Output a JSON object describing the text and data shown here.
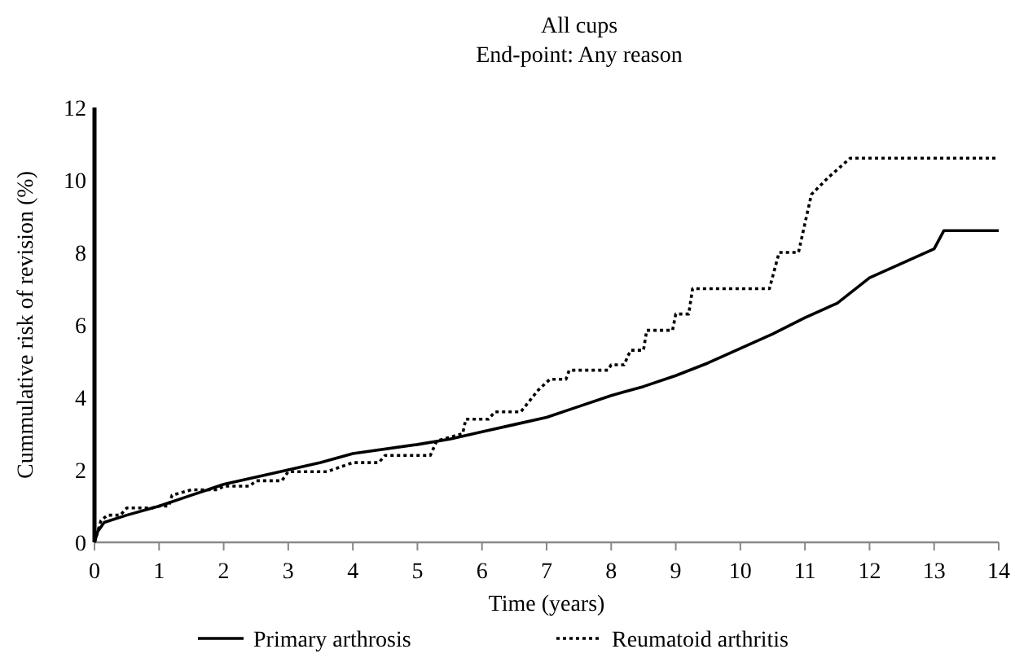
{
  "chart_data": {
    "type": "line",
    "title": "All cups",
    "subtitle": "End-point: Any reason",
    "xlabel": "Time (years)",
    "ylabel": "Cummulative risk of revision (%)",
    "xlim": [
      0,
      14
    ],
    "xticks": [
      0,
      1,
      2,
      3,
      4,
      5,
      6,
      7,
      8,
      9,
      10,
      11,
      12,
      13,
      14
    ],
    "ylim": [
      0,
      12
    ],
    "yticks": [
      0,
      2,
      4,
      6,
      8,
      10,
      12
    ],
    "grid": false,
    "legend": "bottom",
    "marker": "none",
    "series": [
      {
        "name": "Primary arthrosis",
        "color": "#000000",
        "line_style": "solid",
        "x": [
          0,
          0.05,
          0.15,
          0.5,
          1,
          1.5,
          2,
          3,
          3.5,
          4,
          5,
          5.5,
          6,
          6.5,
          7,
          7.5,
          8,
          8.5,
          9,
          9.5,
          10,
          10.5,
          11,
          11.5,
          12,
          12.5,
          13,
          13.15,
          14
        ],
        "values": [
          0,
          0.3,
          0.55,
          0.75,
          1.0,
          1.3,
          1.6,
          2.0,
          2.2,
          2.45,
          2.7,
          2.85,
          3.05,
          3.25,
          3.45,
          3.75,
          4.05,
          4.3,
          4.6,
          4.95,
          5.35,
          5.75,
          6.2,
          6.6,
          7.3,
          7.7,
          8.1,
          8.6,
          8.6
        ]
      },
      {
        "name": "Reumatoid arthritis",
        "color": "#000000",
        "line_style": "dotted",
        "x": [
          0,
          0.1,
          0.2,
          0.4,
          0.5,
          0.9,
          1.0,
          1.15,
          1.2,
          1.5,
          1.9,
          2.0,
          2.4,
          2.5,
          2.9,
          3.0,
          3.6,
          4.0,
          4.4,
          4.5,
          5.0,
          5.2,
          5.3,
          5.7,
          5.75,
          6.1,
          6.2,
          6.6,
          6.87,
          7.05,
          7.3,
          7.35,
          7.95,
          8.0,
          8.2,
          8.3,
          8.5,
          8.55,
          8.95,
          9.0,
          9.2,
          9.26,
          10.45,
          10.6,
          10.9,
          11.1,
          11.35,
          11.7,
          14
        ],
        "values": [
          0,
          0.6,
          0.75,
          0.75,
          0.95,
          0.95,
          1.0,
          1.0,
          1.3,
          1.45,
          1.45,
          1.55,
          1.55,
          1.7,
          1.7,
          1.95,
          1.95,
          2.2,
          2.2,
          2.4,
          2.4,
          2.4,
          2.8,
          3.0,
          3.4,
          3.4,
          3.6,
          3.6,
          4.2,
          4.5,
          4.5,
          4.75,
          4.75,
          4.9,
          4.9,
          5.3,
          5.3,
          5.85,
          5.85,
          6.3,
          6.3,
          7.0,
          7.0,
          8.0,
          8.0,
          9.6,
          10.05,
          10.6,
          10.6
        ]
      }
    ]
  }
}
